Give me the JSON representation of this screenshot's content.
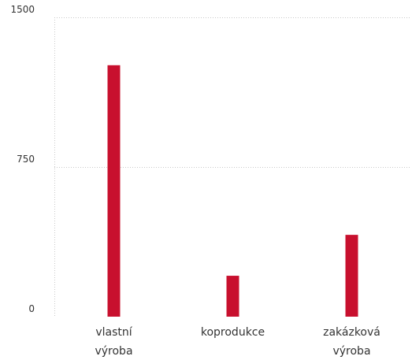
{
  "chart_data": {
    "type": "bar",
    "categories": [
      [
        "vlastní",
        "výroba"
      ],
      [
        "koprodukce"
      ],
      [
        "zakázková",
        "výroba"
      ]
    ],
    "values": [
      1260,
      205,
      410
    ],
    "yticks": [
      "1500",
      "750",
      "0"
    ],
    "ytick_values": [
      1500,
      750,
      0
    ],
    "ylim": [
      0,
      1500
    ],
    "grid": true,
    "title": "",
    "xlabel": "",
    "ylabel": "",
    "bar_color": "#c8102e",
    "grid_color": "#c9c9c9",
    "text_color": "#333333"
  }
}
